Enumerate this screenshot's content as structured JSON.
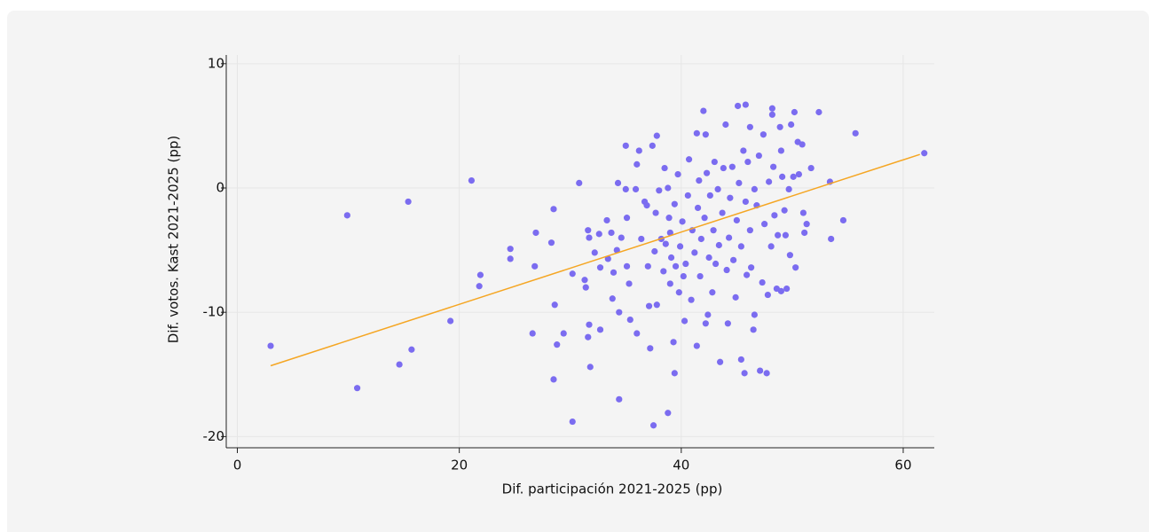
{
  "chart_data": {
    "type": "scatter",
    "x_label": "Dif. participación 2021-2025 (pp)",
    "y_label": "Dif. votos. Kast 2021-2025 (pp)",
    "color": "#7b6cf0",
    "xlim": [
      -1,
      62.8
    ],
    "ylim": [
      -20.9,
      10.7
    ],
    "xticks": [
      0,
      20,
      40,
      60
    ],
    "yticks": [
      -20,
      -10,
      0,
      10
    ],
    "grid": true,
    "x": [
      3.0,
      9.9,
      10.8,
      14.6,
      15.4,
      15.7,
      19.2,
      21.1,
      21.9,
      21.8,
      24.6,
      24.6,
      26.6,
      26.9,
      26.8,
      28.3,
      28.5,
      28.5,
      28.6,
      28.8,
      29.4,
      30.2,
      30.2,
      30.8,
      31.3,
      31.4,
      31.6,
      31.7,
      31.7,
      31.6,
      31.8,
      32.2,
      32.6,
      32.7,
      32.7,
      33.3,
      33.4,
      33.7,
      33.8,
      33.9,
      34.2,
      34.3,
      34.4,
      34.4,
      34.6,
      35.0,
      35.0,
      35.1,
      35.1,
      35.3,
      35.4,
      35.9,
      36.0,
      36.0,
      36.2,
      36.4,
      36.7,
      36.9,
      37.0,
      37.1,
      37.2,
      37.4,
      37.5,
      37.6,
      37.7,
      37.8,
      37.8,
      38.0,
      38.2,
      38.4,
      38.5,
      38.6,
      38.8,
      38.8,
      38.9,
      39.0,
      39.0,
      39.1,
      39.3,
      39.4,
      39.4,
      39.5,
      39.7,
      39.8,
      39.9,
      40.1,
      40.2,
      40.3,
      40.4,
      40.6,
      40.7,
      40.9,
      41.0,
      41.2,
      41.4,
      41.4,
      41.5,
      41.6,
      41.7,
      41.8,
      42.0,
      42.1,
      42.2,
      42.2,
      42.3,
      42.4,
      42.5,
      42.6,
      42.8,
      42.9,
      43.0,
      43.1,
      43.3,
      43.4,
      43.5,
      43.7,
      43.8,
      44.0,
      44.1,
      44.2,
      44.3,
      44.4,
      44.6,
      44.7,
      44.9,
      45.0,
      45.1,
      45.2,
      45.4,
      45.4,
      45.6,
      45.7,
      45.8,
      45.8,
      45.9,
      46.0,
      46.2,
      46.2,
      46.3,
      46.5,
      46.6,
      46.6,
      46.8,
      47.0,
      47.1,
      47.3,
      47.4,
      47.5,
      47.7,
      47.8,
      47.9,
      48.1,
      48.2,
      48.2,
      48.3,
      48.4,
      48.6,
      48.7,
      48.9,
      49.0,
      49.0,
      49.1,
      49.3,
      49.4,
      49.5,
      49.7,
      49.8,
      49.9,
      50.1,
      50.2,
      50.3,
      50.5,
      50.6,
      50.9,
      51.0,
      51.1,
      51.3,
      51.7,
      52.4,
      53.4,
      53.5,
      54.6,
      55.7,
      61.9
    ],
    "values": [
      -12.7,
      -2.2,
      -16.1,
      -14.2,
      -1.1,
      -13.0,
      -10.7,
      0.6,
      -7.0,
      -7.9,
      -4.9,
      -5.7,
      -11.7,
      -3.6,
      -6.3,
      -4.4,
      -1.7,
      -15.4,
      -9.4,
      -12.6,
      -11.7,
      -18.8,
      -6.9,
      0.4,
      -7.4,
      -8.0,
      -3.4,
      -4.0,
      -11.0,
      -12.0,
      -14.4,
      -5.2,
      -3.7,
      -6.4,
      -11.4,
      -2.6,
      -5.7,
      -3.6,
      -8.9,
      -6.8,
      -5.0,
      0.4,
      -10.0,
      -17.0,
      -4.0,
      -0.1,
      3.4,
      -2.4,
      -6.3,
      -7.7,
      -10.6,
      -0.1,
      1.9,
      -11.7,
      3.0,
      -4.1,
      -1.1,
      -1.4,
      -6.3,
      -9.5,
      -12.9,
      3.4,
      -19.1,
      -5.1,
      -2.0,
      4.2,
      -9.4,
      -0.2,
      -4.1,
      -6.7,
      1.6,
      -4.5,
      -18.1,
      0,
      -2.4,
      -7.7,
      -3.6,
      -5.6,
      -12.4,
      -14.9,
      -1.3,
      -6.3,
      1.1,
      -8.4,
      -4.7,
      -2.7,
      -7.1,
      -10.7,
      -6.1,
      -0.6,
      2.3,
      -9.0,
      -3.4,
      -5.2,
      -12.7,
      4.4,
      -1.6,
      0.6,
      -7.1,
      -4.1,
      6.2,
      -2.4,
      4.3,
      -10.9,
      1.2,
      -10.2,
      -5.6,
      -0.6,
      -8.4,
      -3.4,
      2.1,
      -6.1,
      -0.1,
      -4.6,
      -14.0,
      -2.0,
      1.6,
      5.1,
      -6.6,
      -10.9,
      -4.0,
      -0.8,
      1.7,
      -5.8,
      -8.8,
      -2.6,
      6.6,
      0.4,
      -13.8,
      -4.7,
      3.0,
      -14.9,
      -1.1,
      6.7,
      -7.0,
      2.1,
      -3.4,
      4.9,
      -6.4,
      -11.4,
      -0.1,
      -10.2,
      -1.4,
      2.6,
      -14.7,
      -7.6,
      4.3,
      -2.9,
      -14.9,
      -8.6,
      0.5,
      -4.7,
      5.9,
      6.4,
      1.7,
      -2.2,
      -8.1,
      -3.8,
      4.9,
      -8.3,
      3.0,
      0.9,
      -1.8,
      -3.8,
      -8.1,
      -0.1,
      -5.4,
      5.1,
      0.9,
      6.1,
      -6.4,
      3.7,
      1.1,
      3.5,
      -2.0,
      -3.6,
      -2.9,
      1.6,
      6.1,
      0.5,
      -4.1,
      -2.6,
      4.4,
      2.8
    ],
    "trend_line": {
      "color": "#f5a623",
      "x": [
        3,
        61.5
      ],
      "values": [
        -14.3,
        2.7
      ]
    }
  }
}
